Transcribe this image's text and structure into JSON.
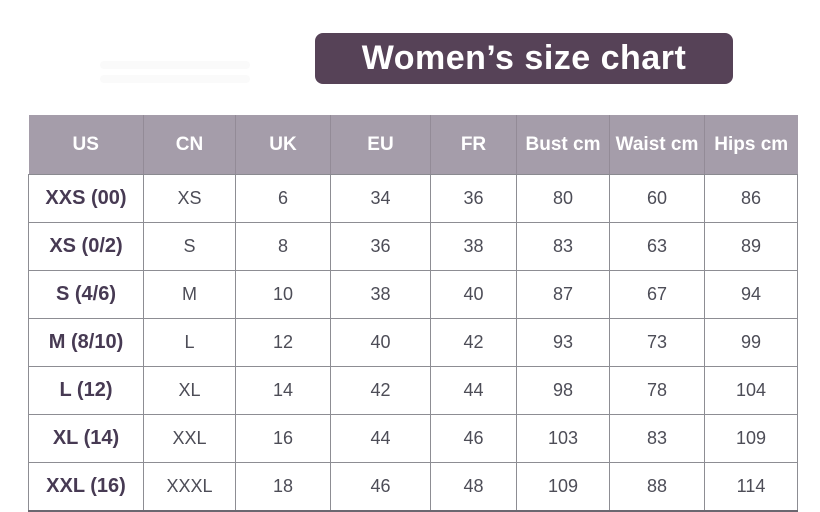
{
  "title": "Women’s size chart",
  "chart_data": {
    "type": "table",
    "title": "Women’s size chart",
    "columns": [
      "US",
      "CN",
      "UK",
      "EU",
      "FR",
      "Bust cm",
      "Waist cm",
      "Hips cm"
    ],
    "rows": [
      [
        "XXS (00)",
        "XS",
        "6",
        "34",
        "36",
        "80",
        "60",
        "86"
      ],
      [
        "XS (0/2)",
        "S",
        "8",
        "36",
        "38",
        "83",
        "63",
        "89"
      ],
      [
        "S (4/6)",
        "M",
        "10",
        "38",
        "40",
        "87",
        "67",
        "94"
      ],
      [
        "M (8/10)",
        "L",
        "12",
        "40",
        "42",
        "93",
        "73",
        "99"
      ],
      [
        "L (12)",
        "XL",
        "14",
        "42",
        "44",
        "98",
        "78",
        "104"
      ],
      [
        "XL (14)",
        "XXL",
        "16",
        "44",
        "46",
        "103",
        "83",
        "109"
      ],
      [
        "XXL (16)",
        "XXXL",
        "18",
        "46",
        "48",
        "109",
        "88",
        "114"
      ]
    ],
    "layout": {
      "header_position": "top",
      "first_column_is_label": true
    }
  },
  "colors": {
    "title_bg": "#564257",
    "title_text": "#ffffff",
    "header_bg": "#a59daa",
    "header_text": "#ffffff",
    "row_label_text": "#473a53",
    "cell_text": "#4d4d57",
    "grid_border": "#8d8d93",
    "page_bg": "#ffffff"
  }
}
